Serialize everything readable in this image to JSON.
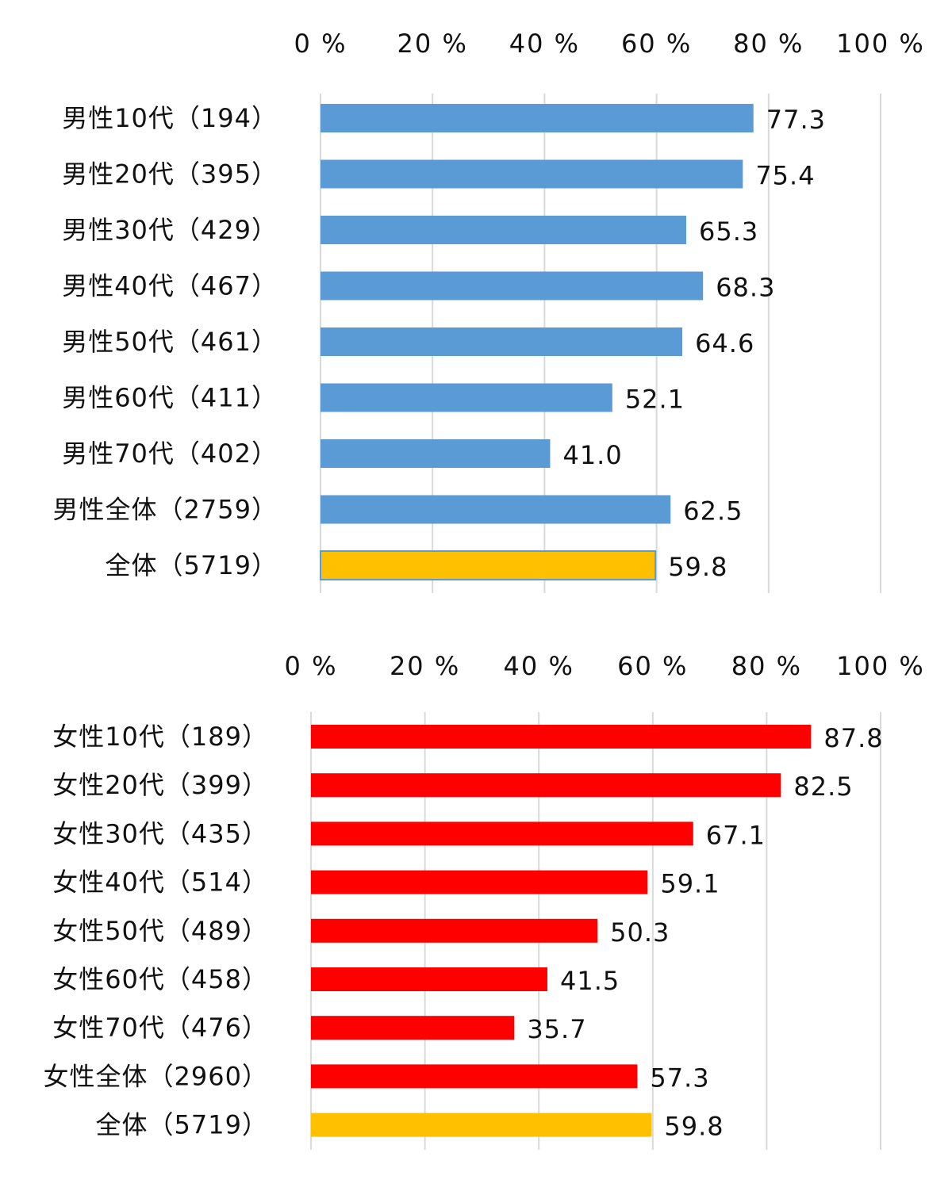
{
  "chart_data": [
    {
      "type": "bar",
      "orientation": "horizontal",
      "categories": [
        "男性10代（194）",
        "男性20代（395）",
        "男性30代（429）",
        "男性40代（467）",
        "男性50代（461）",
        "男性60代（411）",
        "男性70代（402）",
        "男性全体（2759）",
        "全体（5719）"
      ],
      "values": [
        77.3,
        75.4,
        65.3,
        68.3,
        64.6,
        52.1,
        41.0,
        62.5,
        59.8
      ],
      "value_labels": [
        "77.3",
        "75.4",
        "65.3",
        "68.3",
        "64.6",
        "52.1",
        "41.0",
        "62.5",
        "59.8"
      ],
      "bar_colors": [
        "#5B9BD5",
        "#5B9BD5",
        "#5B9BD5",
        "#5B9BD5",
        "#5B9BD5",
        "#5B9BD5",
        "#5B9BD5",
        "#5B9BD5",
        "#FFC000"
      ],
      "xlim": [
        0,
        100
      ],
      "x_ticks": [
        "0 %",
        "20 %",
        "40 %",
        "60 %",
        "80 %",
        "100 %"
      ],
      "x_axis_position": "top",
      "grid": true
    },
    {
      "type": "bar",
      "orientation": "horizontal",
      "categories": [
        "女性10代（189）",
        "女性20代（399）",
        "女性30代（435）",
        "女性40代（514）",
        "女性50代（489）",
        "女性60代（458）",
        "女性70代（476）",
        "女性全体（2960）",
        "全体（5719）"
      ],
      "values": [
        87.8,
        82.5,
        67.1,
        59.1,
        50.3,
        41.5,
        35.7,
        57.3,
        59.8
      ],
      "value_labels": [
        "87.8",
        "82.5",
        "67.1",
        "59.1",
        "50.3",
        "41.5",
        "35.7",
        "57.3",
        "59.8"
      ],
      "bar_colors": [
        "#FF0000",
        "#FF0000",
        "#FF0000",
        "#FF0000",
        "#FF0000",
        "#FF0000",
        "#FF0000",
        "#FF0000",
        "#FFC000"
      ],
      "xlim": [
        0,
        100
      ],
      "x_ticks": [
        "0 %",
        "20 %",
        "40 %",
        "60 %",
        "80 %",
        "100 %"
      ],
      "x_axis_position": "top",
      "grid": true
    }
  ]
}
